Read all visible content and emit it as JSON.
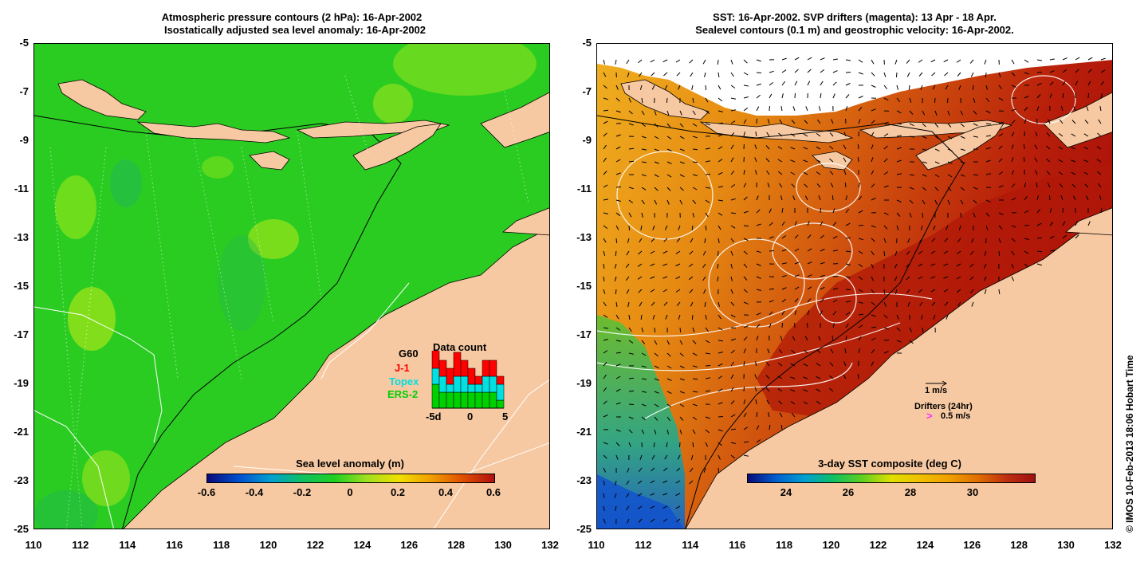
{
  "left_panel": {
    "title_line1": "Atmospheric pressure contours (2 hPa): 16-Apr-2002",
    "title_line2": "Isostatically adjusted sea level anomaly: 16-Apr-2002",
    "colorbar": {
      "label": "Sea level anomaly (m)",
      "ticks": [
        "-0.6",
        "-0.4",
        "-0.2",
        "0",
        "0.2",
        "0.4",
        "0.6"
      ],
      "colors": [
        "#0a0a7a",
        "#0050d0",
        "#00a0d0",
        "#10c060",
        "#20d020",
        "#a0e020",
        "#f0e000",
        "#f0a000",
        "#e05000",
        "#b01010"
      ]
    },
    "data_count": {
      "title": "Data count",
      "sats": [
        "G60",
        "J-1",
        "Topex",
        "ERS-2"
      ],
      "sat_colors": [
        "#000000",
        "#ff0000",
        "#00e0e0",
        "#00d000"
      ],
      "ticks": [
        "-5d",
        "0",
        "5"
      ],
      "bars": [
        {
          "ers": 3,
          "topex": 2,
          "j1": 3
        },
        {
          "ers": 2,
          "topex": 2,
          "j1": 2
        },
        {
          "ers": 2,
          "topex": 1,
          "j1": 2
        },
        {
          "ers": 2,
          "topex": 2,
          "j1": 3
        },
        {
          "ers": 2,
          "topex": 2,
          "j1": 2
        },
        {
          "ers": 2,
          "topex": 1,
          "j1": 2
        },
        {
          "ers": 2,
          "topex": 1,
          "j1": 1
        },
        {
          "ers": 2,
          "topex": 2,
          "j1": 2
        },
        {
          "ers": 2,
          "topex": 2,
          "j1": 2
        },
        {
          "ers": 1,
          "topex": 2,
          "j1": 1
        }
      ]
    }
  },
  "right_panel": {
    "title_line1": "SST: 16-Apr-2002. SVP drifters (magenta): 13 Apr - 18 Apr.",
    "title_line2": "Sealevel contours (0.1 m) and geostrophic velocity: 16-Apr-2002.",
    "colorbar": {
      "label": "3-day SST composite (deg C)",
      "ticks": [
        "24",
        "26",
        "28",
        "30"
      ],
      "colors": [
        "#0a0a7a",
        "#0060d0",
        "#00a0d0",
        "#10c060",
        "#60d020",
        "#e0e000",
        "#f0c000",
        "#f0a000",
        "#e07000",
        "#c03010",
        "#a01010"
      ]
    },
    "velocity_legend": "1 m/s",
    "drifter_legend_title": "Drifters (24hr)",
    "drifter_legend_scale": "0.5 m/s",
    "drifter_symbol": ">"
  },
  "axes": {
    "y_ticks": [
      "-5",
      "-7",
      "-9",
      "-11",
      "-13",
      "-15",
      "-17",
      "-19",
      "-21",
      "-23",
      "-25"
    ],
    "x_ticks": [
      "110",
      "112",
      "114",
      "116",
      "118",
      "120",
      "122",
      "124",
      "126",
      "128",
      "130",
      "132"
    ]
  },
  "credit": "© IMOS 10-Feb-2013 18:06 Hobart Time",
  "colors": {
    "land": "#f7c9a2",
    "ocean_left": "#22cc22",
    "ocean_right": "#e69a10",
    "ocean_right_warm": "#c02a0a"
  }
}
